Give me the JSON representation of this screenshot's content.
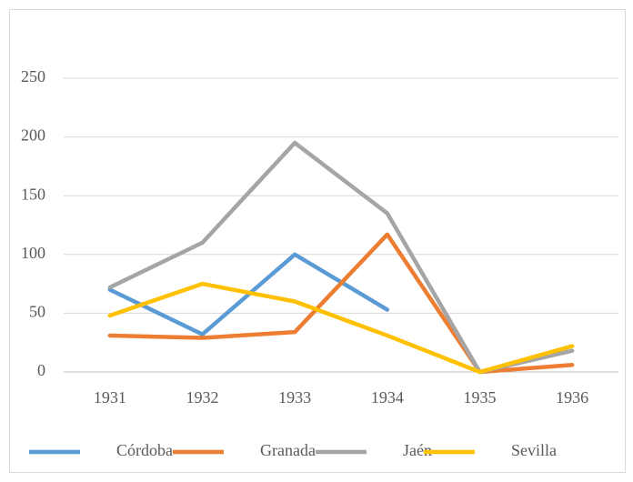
{
  "chart_data": {
    "type": "line",
    "categories": [
      "1931",
      "1932",
      "1933",
      "1934",
      "1935",
      "1936"
    ],
    "series": [
      {
        "name": "Córdoba",
        "color": "#5b9bd5",
        "values": [
          70,
          32,
          100,
          53,
          null,
          null
        ]
      },
      {
        "name": "Granada",
        "color": "#ed7d31",
        "values": [
          31,
          29,
          34,
          117,
          0,
          6
        ]
      },
      {
        "name": "Jaén",
        "color": "#a5a5a5",
        "values": [
          72,
          110,
          195,
          135,
          0,
          18
        ]
      },
      {
        "name": "Sevilla",
        "color": "#ffc000",
        "values": [
          48,
          75,
          60,
          31,
          0,
          22
        ]
      }
    ],
    "ylim": [
      0,
      250
    ],
    "yticks": [
      0,
      50,
      100,
      150,
      200,
      250
    ],
    "grid": true,
    "legend": "bottom"
  }
}
